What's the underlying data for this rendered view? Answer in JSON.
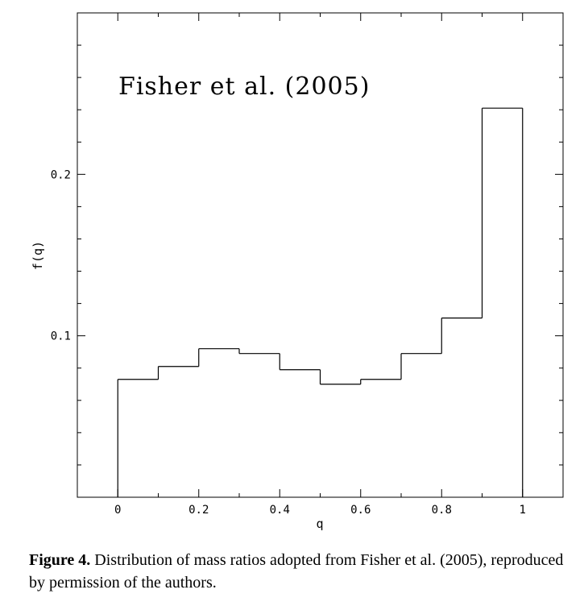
{
  "chart_data": {
    "type": "histogram",
    "annotation": "Fisher et al. (2005)",
    "xlabel": "q",
    "ylabel": "f(q)",
    "xlim": [
      -0.1,
      1.1
    ],
    "ylim": [
      0.0,
      0.3
    ],
    "x_ticks": [
      {
        "value": 0,
        "label": "0"
      },
      {
        "value": 0.2,
        "label": "0.2"
      },
      {
        "value": 0.4,
        "label": "0.4"
      },
      {
        "value": 0.6,
        "label": "0.6"
      },
      {
        "value": 0.8,
        "label": "0.8"
      },
      {
        "value": 1,
        "label": "1"
      }
    ],
    "y_ticks": [
      {
        "value": 0.1,
        "label": "0.1"
      },
      {
        "value": 0.2,
        "label": "0.2"
      }
    ],
    "bins": [
      {
        "x0": 0.0,
        "x1": 0.1,
        "value": 0.073
      },
      {
        "x0": 0.1,
        "x1": 0.2,
        "value": 0.081
      },
      {
        "x0": 0.2,
        "x1": 0.3,
        "value": 0.092
      },
      {
        "x0": 0.3,
        "x1": 0.4,
        "value": 0.089
      },
      {
        "x0": 0.4,
        "x1": 0.5,
        "value": 0.079
      },
      {
        "x0": 0.5,
        "x1": 0.6,
        "value": 0.07
      },
      {
        "x0": 0.6,
        "x1": 0.7,
        "value": 0.073
      },
      {
        "x0": 0.7,
        "x1": 0.8,
        "value": 0.089
      },
      {
        "x0": 0.8,
        "x1": 0.9,
        "value": 0.111
      },
      {
        "x0": 0.9,
        "x1": 1.0,
        "value": 0.241
      }
    ]
  },
  "caption": {
    "label": "Figure 4.",
    "text": " Distribution of mass ratios adopted from Fisher et al. (2005), reproduced by permission of the authors."
  }
}
